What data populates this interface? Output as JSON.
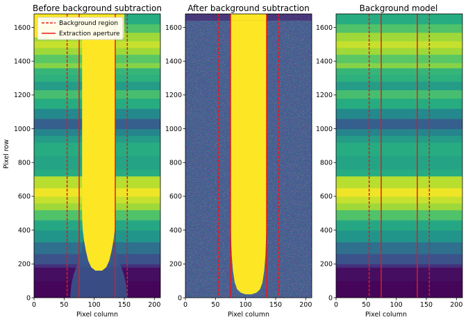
{
  "chart_data": [
    {
      "type": "heatmap",
      "title": "Before background subtraction",
      "xlabel": "Pixel column",
      "ylabel": "Pixel row",
      "xlim": [
        0,
        210
      ],
      "ylim": [
        0,
        1680
      ],
      "xticks": [
        0,
        50,
        100,
        150,
        200
      ],
      "yticks": [
        0,
        200,
        400,
        600,
        800,
        1000,
        1200,
        1400,
        1600
      ],
      "colormap": "viridis",
      "legend": {
        "placement": "top-left",
        "entries": [
          {
            "label": "Background region",
            "style": "dashed",
            "color": "#e41a1c"
          },
          {
            "label": "Extraction aperture",
            "style": "solid",
            "color": "#e41a1c"
          }
        ]
      },
      "background_region_columns": [
        55,
        155
      ],
      "extraction_aperture_columns": [
        75,
        135
      ]
    },
    {
      "type": "heatmap",
      "title": "After background subtraction",
      "xlabel": "Pixel column",
      "ylabel": "",
      "xlim": [
        0,
        210
      ],
      "ylim": [
        0,
        1680
      ],
      "xticks": [
        0,
        50,
        100,
        150,
        200
      ],
      "yticks": [
        0,
        200,
        400,
        600,
        800,
        1000,
        1200,
        1400,
        1600
      ],
      "colormap": "viridis",
      "background_region_columns": [
        55,
        155
      ],
      "extraction_aperture_columns": [
        75,
        135
      ]
    },
    {
      "type": "heatmap",
      "title": "Background model",
      "xlabel": "Pixel column",
      "ylabel": "",
      "xlim": [
        0,
        210
      ],
      "ylim": [
        0,
        1680
      ],
      "xticks": [
        0,
        50,
        100,
        150,
        200
      ],
      "yticks": [
        0,
        200,
        400,
        600,
        800,
        1000,
        1200,
        1400,
        1600
      ],
      "colormap": "viridis",
      "background_region_columns": [
        55,
        155
      ],
      "extraction_aperture_columns": [
        75,
        135
      ]
    }
  ],
  "background_rows": [
    [
      0,
      100,
      0.02
    ],
    [
      100,
      180,
      0.05
    ],
    [
      180,
      200,
      0.18
    ],
    [
      200,
      260,
      0.32
    ],
    [
      260,
      330,
      0.42
    ],
    [
      330,
      400,
      0.52
    ],
    [
      400,
      460,
      0.6
    ],
    [
      460,
      520,
      0.72
    ],
    [
      520,
      560,
      0.86
    ],
    [
      560,
      600,
      0.92
    ],
    [
      600,
      650,
      0.98
    ],
    [
      650,
      720,
      0.9
    ],
    [
      720,
      760,
      0.62
    ],
    [
      760,
      840,
      0.58
    ],
    [
      840,
      920,
      0.62
    ],
    [
      920,
      960,
      0.55
    ],
    [
      960,
      1000,
      0.47
    ],
    [
      1000,
      1060,
      0.38
    ],
    [
      1060,
      1120,
      0.48
    ],
    [
      1120,
      1180,
      0.62
    ],
    [
      1180,
      1230,
      0.7
    ],
    [
      1230,
      1280,
      0.55
    ],
    [
      1280,
      1320,
      0.64
    ],
    [
      1320,
      1360,
      0.66
    ],
    [
      1360,
      1390,
      0.82
    ],
    [
      1390,
      1440,
      0.74
    ],
    [
      1440,
      1480,
      0.86
    ],
    [
      1480,
      1520,
      0.92
    ],
    [
      1520,
      1570,
      0.86
    ],
    [
      1570,
      1620,
      0.72
    ],
    [
      1620,
      1680,
      0.62
    ]
  ]
}
